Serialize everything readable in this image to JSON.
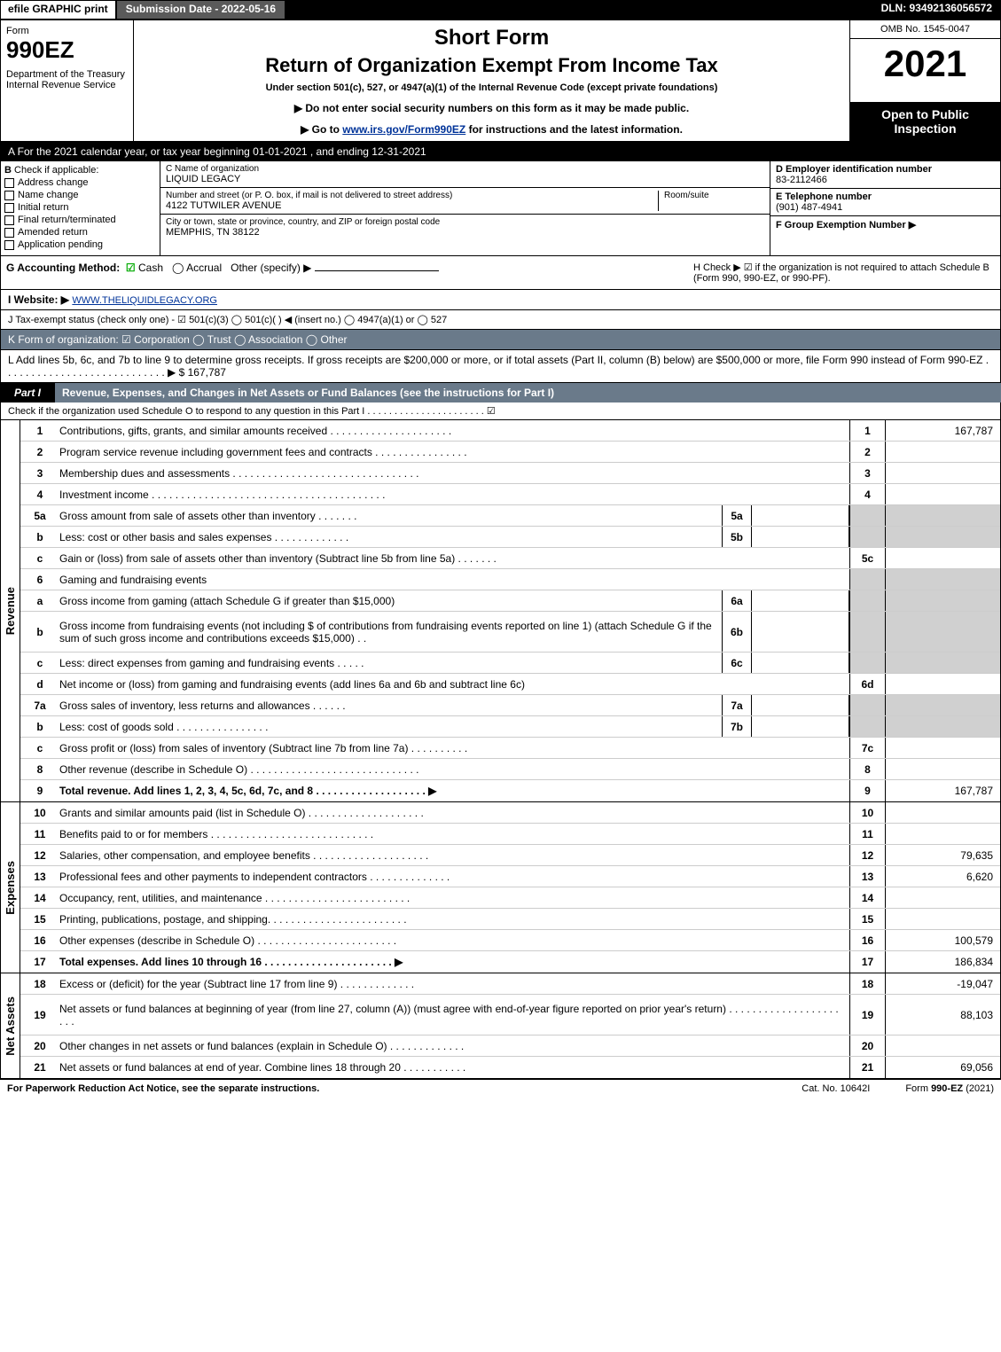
{
  "topbar": {
    "efile": "efile GRAPHIC print",
    "submission": "Submission Date - 2022-05-16",
    "dln": "DLN: 93492136056572"
  },
  "header": {
    "form_word": "Form",
    "form_number": "990EZ",
    "dept": "Department of the Treasury\nInternal Revenue Service",
    "short_form": "Short Form",
    "title": "Return of Organization Exempt From Income Tax",
    "under": "Under section 501(c), 527, or 4947(a)(1) of the Internal Revenue Code (except private foundations)",
    "no_ssn": "▶ Do not enter social security numbers on this form as it may be made public.",
    "goto_pre": "▶ Go to ",
    "goto_link": "www.irs.gov/Form990EZ",
    "goto_post": " for instructions and the latest information.",
    "omb": "OMB No. 1545-0047",
    "year": "2021",
    "open": "Open to Public Inspection"
  },
  "section_a": "A  For the 2021 calendar year, or tax year beginning 01-01-2021 , and ending 12-31-2021",
  "section_b": {
    "label": "B",
    "title": "Check if applicable:",
    "items": [
      "Address change",
      "Name change",
      "Initial return",
      "Final return/terminated",
      "Amended return",
      "Application pending"
    ]
  },
  "section_c": {
    "name_lbl": "C Name of organization",
    "name_val": "LIQUID LEGACY",
    "street_lbl": "Number and street (or P. O. box, if mail is not delivered to street address)",
    "room_lbl": "Room/suite",
    "street_val": "4122 TUTWILER AVENUE",
    "city_lbl": "City or town, state or province, country, and ZIP or foreign postal code",
    "city_val": "MEMPHIS, TN  38122"
  },
  "section_d": {
    "ein_lbl": "D Employer identification number",
    "ein_val": "83-2112466",
    "tel_lbl": "E Telephone number",
    "tel_val": "(901) 487-4941",
    "grp_lbl": "F Group Exemption Number   ▶"
  },
  "section_g": {
    "label": "G Accounting Method:",
    "cash": "Cash",
    "accrual": "Accrual",
    "other": "Other (specify) ▶"
  },
  "section_h": "H  Check ▶ ☑ if the organization is not required to attach Schedule B (Form 990, 990-EZ, or 990-PF).",
  "section_i": {
    "label": "I Website: ▶",
    "val": "WWW.THELIQUIDLEGACY.ORG"
  },
  "section_j": "J Tax-exempt status (check only one) - ☑ 501(c)(3)  ◯ 501(c)( ) ◀ (insert no.)  ◯ 4947(a)(1) or  ◯ 527",
  "section_k": "K Form of organization:  ☑ Corporation  ◯ Trust  ◯ Association  ◯ Other",
  "section_l": "L Add lines 5b, 6c, and 7b to line 9 to determine gross receipts. If gross receipts are $200,000 or more, or if total assets (Part II, column (B) below) are $500,000 or more, file Form 990 instead of Form 990-EZ  . . . . . . . . . . . . . . . . . . . . . . . . . . . .  ▶ $ 167,787",
  "part1": {
    "label": "Part I",
    "title": "Revenue, Expenses, and Changes in Net Assets or Fund Balances (see the instructions for Part I)",
    "sub": "Check if the organization used Schedule O to respond to any question in this Part I . . . . . . . . . . . . . . . . . . . . . .  ☑"
  },
  "sides": {
    "revenue": "Revenue",
    "expenses": "Expenses",
    "netassets": "Net Assets"
  },
  "revenue_lines": [
    {
      "n": "1",
      "d": "Contributions, gifts, grants, and similar amounts received . . . . . . . . . . . . . . . . . . . . .",
      "ref": "1",
      "amt": "167,787"
    },
    {
      "n": "2",
      "d": "Program service revenue including government fees and contracts . . . . . . . . . . . . . . . .",
      "ref": "2",
      "amt": ""
    },
    {
      "n": "3",
      "d": "Membership dues and assessments . . . . . . . . . . . . . . . . . . . . . . . . . . . . . . . .",
      "ref": "3",
      "amt": ""
    },
    {
      "n": "4",
      "d": "Investment income . . . . . . . . . . . . . . . . . . . . . . . . . . . . . . . . . . . . . . . .",
      "ref": "4",
      "amt": ""
    },
    {
      "n": "5a",
      "d": "Gross amount from sale of assets other than inventory . . . . . . .",
      "sub": "5a",
      "shade": true
    },
    {
      "n": "b",
      "d": "Less: cost or other basis and sales expenses . . . . . . . . . . . . .",
      "sub": "5b",
      "shade": true
    },
    {
      "n": "c",
      "d": "Gain or (loss) from sale of assets other than inventory (Subtract line 5b from line 5a) . . . . . . .",
      "ref": "5c",
      "amt": ""
    },
    {
      "n": "6",
      "d": "Gaming and fundraising events",
      "noref": true
    },
    {
      "n": "a",
      "d": "Gross income from gaming (attach Schedule G if greater than $15,000)",
      "sub": "6a",
      "shade": true
    },
    {
      "n": "b",
      "d": "Gross income from fundraising events (not including $                     of contributions from fundraising events reported on line 1) (attach Schedule G if the sum of such gross income and contributions exceeds $15,000)   . .",
      "sub": "6b",
      "shade": true,
      "tall": true
    },
    {
      "n": "c",
      "d": "Less: direct expenses from gaming and fundraising events . . . . .",
      "sub": "6c",
      "shade": true
    },
    {
      "n": "d",
      "d": "Net income or (loss) from gaming and fundraising events (add lines 6a and 6b and subtract line 6c)",
      "ref": "6d",
      "amt": ""
    },
    {
      "n": "7a",
      "d": "Gross sales of inventory, less returns and allowances . . . . . .",
      "sub": "7a",
      "shade": true
    },
    {
      "n": "b",
      "d": "Less: cost of goods sold       . . . . . . . . . . . . . . . .",
      "sub": "7b",
      "shade": true
    },
    {
      "n": "c",
      "d": "Gross profit or (loss) from sales of inventory (Subtract line 7b from line 7a) . . . . . . . . . .",
      "ref": "7c",
      "amt": ""
    },
    {
      "n": "8",
      "d": "Other revenue (describe in Schedule O) . . . . . . . . . . . . . . . . . . . . . . . . . . . . .",
      "ref": "8",
      "amt": ""
    },
    {
      "n": "9",
      "d": "Total revenue. Add lines 1, 2, 3, 4, 5c, 6d, 7c, and 8  . . . . . . . . . . . . . . . . . . .  ▶",
      "ref": "9",
      "amt": "167,787",
      "bold": true
    }
  ],
  "expense_lines": [
    {
      "n": "10",
      "d": "Grants and similar amounts paid (list in Schedule O) . . . . . . . . . . . . . . . . . . . .",
      "ref": "10",
      "amt": ""
    },
    {
      "n": "11",
      "d": "Benefits paid to or for members     . . . . . . . . . . . . . . . . . . . . . . . . . . . .",
      "ref": "11",
      "amt": ""
    },
    {
      "n": "12",
      "d": "Salaries, other compensation, and employee benefits . . . . . . . . . . . . . . . . . . . .",
      "ref": "12",
      "amt": "79,635"
    },
    {
      "n": "13",
      "d": "Professional fees and other payments to independent contractors . . . . . . . . . . . . . .",
      "ref": "13",
      "amt": "6,620"
    },
    {
      "n": "14",
      "d": "Occupancy, rent, utilities, and maintenance . . . . . . . . . . . . . . . . . . . . . . . . .",
      "ref": "14",
      "amt": ""
    },
    {
      "n": "15",
      "d": "Printing, publications, postage, and shipping. . . . . . . . . . . . . . . . . . . . . . . .",
      "ref": "15",
      "amt": ""
    },
    {
      "n": "16",
      "d": "Other expenses (describe in Schedule O)    . . . . . . . . . . . . . . . . . . . . . . . .",
      "ref": "16",
      "amt": "100,579"
    },
    {
      "n": "17",
      "d": "Total expenses. Add lines 10 through 16    . . . . . . . . . . . . . . . . . . . . . .  ▶",
      "ref": "17",
      "amt": "186,834",
      "bold": true
    }
  ],
  "net_lines": [
    {
      "n": "18",
      "d": "Excess or (deficit) for the year (Subtract line 17 from line 9)       . . . . . . . . . . . . .",
      "ref": "18",
      "amt": "-19,047"
    },
    {
      "n": "19",
      "d": "Net assets or fund balances at beginning of year (from line 27, column (A)) (must agree with end-of-year figure reported on prior year's return) . . . . . . . . . . . . . . . . . . . . . .",
      "ref": "19",
      "amt": "88,103",
      "tall": true
    },
    {
      "n": "20",
      "d": "Other changes in net assets or fund balances (explain in Schedule O) . . . . . . . . . . . . .",
      "ref": "20",
      "amt": ""
    },
    {
      "n": "21",
      "d": "Net assets or fund balances at end of year. Combine lines 18 through 20 . . . . . . . . . . .",
      "ref": "21",
      "amt": "69,056"
    }
  ],
  "footer": {
    "paperwork": "For Paperwork Reduction Act Notice, see the separate instructions.",
    "cat": "Cat. No. 10642I",
    "form": "Form 990-EZ (2021)"
  }
}
